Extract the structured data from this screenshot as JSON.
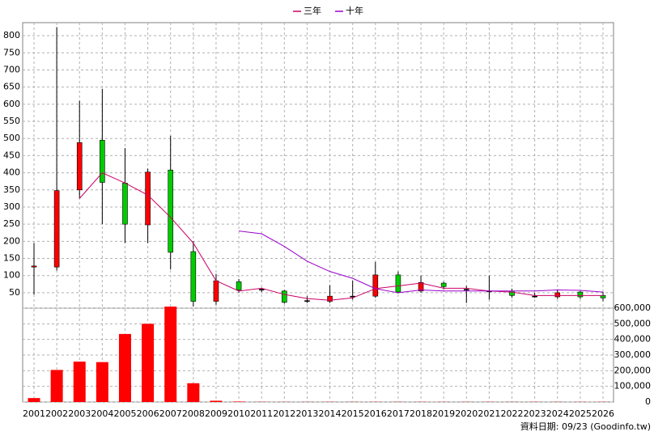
{
  "chart_data": {
    "type": "candlestick",
    "categories": [
      "2001",
      "2002",
      "2003",
      "2004",
      "2005",
      "2006",
      "2007",
      "2008",
      "2009",
      "2010",
      "2011",
      "2012",
      "2013",
      "2014",
      "2015",
      "2016",
      "2017",
      "2018",
      "2019",
      "2020",
      "2021",
      "2022",
      "2023",
      "2024",
      "2025",
      "2026"
    ],
    "open": [
      125,
      125,
      350,
      495,
      370,
      248,
      408,
      170,
      25,
      82,
      60,
      55,
      27,
      25,
      40,
      40,
      102,
      55,
      78,
      60,
      55,
      55,
      40,
      38,
      52,
      42
    ],
    "high": [
      195,
      825,
      610,
      645,
      472,
      412,
      508,
      200,
      105,
      90,
      65,
      58,
      40,
      72,
      85,
      140,
      112,
      100,
      82,
      70,
      100,
      62,
      50,
      60,
      55,
      52
    ],
    "low": [
      45,
      115,
      325,
      250,
      195,
      195,
      118,
      10,
      15,
      50,
      52,
      18,
      20,
      20,
      30,
      35,
      48,
      50,
      60,
      20,
      30,
      35,
      35,
      32,
      32,
      25
    ],
    "close": [
      128,
      348,
      488,
      372,
      250,
      402,
      168,
      25,
      85,
      58,
      60,
      22,
      27,
      40,
      40,
      102,
      52,
      80,
      68,
      60,
      55,
      42,
      40,
      50,
      38,
      35
    ],
    "up_color": "#ff0000",
    "down_color": "#00cc00",
    "flat_color": "#000000",
    "ylim": [
      5,
      838
    ],
    "yticks": [
      50,
      100,
      150,
      200,
      250,
      300,
      350,
      400,
      450,
      500,
      550,
      600,
      650,
      700,
      750,
      800
    ],
    "grid": true,
    "series": [
      {
        "name": "三年",
        "color": "#cc0066",
        "values": [
          null,
          null,
          325,
          400,
          370,
          335,
          270,
          195,
          85,
          55,
          63,
          45,
          33,
          28,
          35,
          62,
          70,
          78,
          63,
          63,
          55,
          52,
          42,
          42,
          42,
          42
        ]
      },
      {
        "name": "十年",
        "color": "#9900cc",
        "values": [
          null,
          null,
          null,
          null,
          null,
          null,
          null,
          null,
          null,
          230,
          222,
          185,
          142,
          112,
          92,
          62,
          50,
          58,
          55,
          55,
          55,
          55,
          55,
          58,
          57,
          52
        ]
      }
    ],
    "legend": "top",
    "volume": {
      "color": "#ff0000",
      "values": [
        25000,
        205000,
        258000,
        255000,
        435000,
        500000,
        610000,
        120000,
        8000,
        3000,
        1000,
        1000,
        1000,
        1000,
        1000,
        1000,
        1000,
        1000,
        1000,
        1000,
        1000,
        1000,
        1000,
        1000,
        1000,
        1000
      ],
      "ylim": [
        0,
        600000
      ],
      "yticks": [
        0,
        {
          "value": 100000,
          "label": "100,000"
        },
        {
          "value": 200000,
          "label": "200,000"
        },
        {
          "value": 300000,
          "label": "300,000"
        },
        {
          "value": 400000,
          "label": "400,000"
        },
        {
          "value": 500000,
          "label": "500,000"
        },
        {
          "value": 600000,
          "label": "600,000"
        }
      ]
    },
    "footnote": "資料日期: 09/23 (Goodinfo.tw)"
  }
}
